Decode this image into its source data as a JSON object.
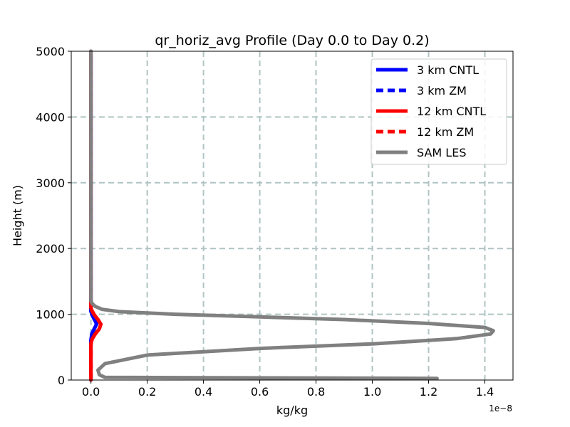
{
  "chart_data": {
    "type": "line",
    "title": "qr_horiz_avg Profile (Day 0.0 to Day 0.2)",
    "xlabel": "kg/kg",
    "ylabel": "Height (m)",
    "x_offset_label": "1e−8",
    "xlim": [
      -0.07,
      1.5
    ],
    "ylim": [
      0,
      5000
    ],
    "xticks": [
      0.0,
      0.2,
      0.4,
      0.6,
      0.8,
      1.0,
      1.2,
      1.4
    ],
    "xtick_labels": [
      "0.0",
      "0.2",
      "0.4",
      "0.6",
      "0.8",
      "1.0",
      "1.2",
      "1.4"
    ],
    "yticks": [
      0,
      1000,
      2000,
      3000,
      4000,
      5000
    ],
    "ytick_labels": [
      "0",
      "1000",
      "2000",
      "3000",
      "4000",
      "5000"
    ],
    "grid": true,
    "legend_position": "top-right",
    "series": [
      {
        "name": "3 km CNTL",
        "color": "#0000ff",
        "dash": "solid",
        "x": [
          0.0,
          0.0,
          0.003,
          0.012,
          0.02,
          0.015,
          0.005,
          0.0,
          0.0,
          0.0
        ],
        "y": [
          0,
          600,
          700,
          780,
          850,
          900,
          980,
          1050,
          1100,
          5000
        ]
      },
      {
        "name": "3 km ZM",
        "color": "#0000ff",
        "dash": "dashed",
        "x": [
          0.0,
          0.0,
          0.003,
          0.012,
          0.02,
          0.015,
          0.005,
          0.0,
          0.0,
          0.0
        ],
        "y": [
          0,
          600,
          700,
          780,
          850,
          900,
          980,
          1050,
          1100,
          5000
        ]
      },
      {
        "name": "12 km CNTL",
        "color": "#ff0000",
        "dash": "solid",
        "x": [
          0.0,
          0.0,
          0.004,
          0.015,
          0.03,
          0.035,
          0.025,
          0.012,
          0.004,
          0.0,
          0.0,
          0.0
        ],
        "y": [
          0,
          550,
          620,
          700,
          780,
          850,
          920,
          990,
          1050,
          1100,
          1150,
          5000
        ]
      },
      {
        "name": "12 km ZM",
        "color": "#ff0000",
        "dash": "dashed",
        "x": [
          0.0,
          0.0,
          0.004,
          0.015,
          0.03,
          0.035,
          0.025,
          0.012,
          0.004,
          0.0,
          0.0,
          0.0
        ],
        "y": [
          0,
          550,
          620,
          700,
          780,
          850,
          920,
          990,
          1050,
          1100,
          1150,
          5000
        ]
      },
      {
        "name": "SAM LES",
        "color": "#808080",
        "dash": "solid",
        "x": [
          1.23,
          0.05,
          0.03,
          0.025,
          0.05,
          0.2,
          0.6,
          1.0,
          1.3,
          1.42,
          1.43,
          1.4,
          1.2,
          0.9,
          0.6,
          0.3,
          0.1,
          0.04,
          0.015,
          0.005,
          0.0,
          0.0
        ],
        "y": [
          25,
          40,
          80,
          150,
          250,
          380,
          480,
          550,
          630,
          700,
          750,
          800,
          860,
          920,
          960,
          1000,
          1040,
          1075,
          1120,
          1160,
          1200,
          5000
        ]
      }
    ]
  }
}
